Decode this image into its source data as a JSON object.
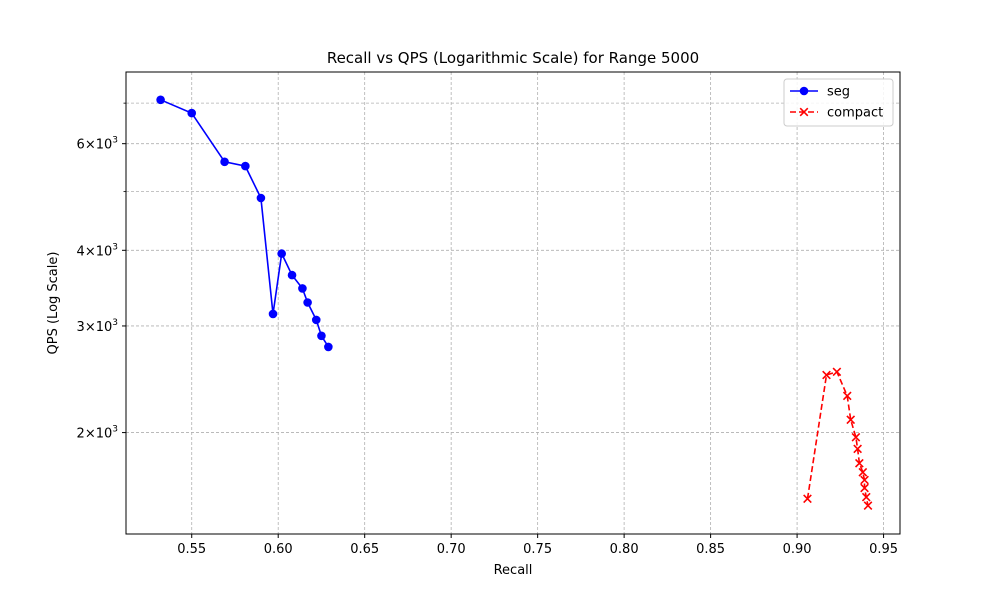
{
  "chart_data": {
    "type": "line",
    "title": "Recall vs QPS (Logarithmic Scale) for Range 5000",
    "xlabel": "Recall",
    "ylabel": "QPS (Log Scale)",
    "xlim": [
      0.512,
      0.9595
    ],
    "ylim": [
      1360,
      7880
    ],
    "yscale": "log",
    "grid": true,
    "legend_position": "top-right",
    "x_ticks": [
      0.55,
      0.6,
      0.65,
      0.7,
      0.75,
      0.8,
      0.85,
      0.9,
      0.95
    ],
    "x_tick_labels": [
      "0.55",
      "0.60",
      "0.65",
      "0.70",
      "0.75",
      "0.80",
      "0.85",
      "0.90",
      "0.95"
    ],
    "y_major_ticks": [
      {
        "value": 2000,
        "mantissa": "2",
        "base": "10",
        "exp": "3"
      },
      {
        "value": 3000,
        "mantissa": "3",
        "base": "10",
        "exp": "3"
      },
      {
        "value": 4000,
        "mantissa": "4",
        "base": "10",
        "exp": "3"
      },
      {
        "value": 6000,
        "mantissa": "6",
        "base": "10",
        "exp": "3"
      }
    ],
    "y_minor_ticks": [
      5000,
      7000
    ],
    "series": [
      {
        "name": "seg",
        "color": "#0000ff",
        "marker": "circle",
        "linestyle": "solid",
        "x": [
          0.532,
          0.55,
          0.569,
          0.581,
          0.59,
          0.597,
          0.602,
          0.608,
          0.614,
          0.617,
          0.622,
          0.625,
          0.629
        ],
        "y": [
          7090,
          6740,
          5600,
          5510,
          4880,
          3140,
          3950,
          3640,
          3460,
          3280,
          3070,
          2890,
          2770
        ]
      },
      {
        "name": "compact",
        "color": "#ff0000",
        "marker": "x",
        "linestyle": "dashed",
        "x": [
          0.906,
          0.917,
          0.923,
          0.929,
          0.931,
          0.934,
          0.935,
          0.936,
          0.938,
          0.939,
          0.939,
          0.94,
          0.941
        ],
        "y": [
          1555,
          2490,
          2520,
          2300,
          2100,
          1965,
          1880,
          1780,
          1720,
          1670,
          1620,
          1565,
          1515
        ]
      }
    ]
  }
}
